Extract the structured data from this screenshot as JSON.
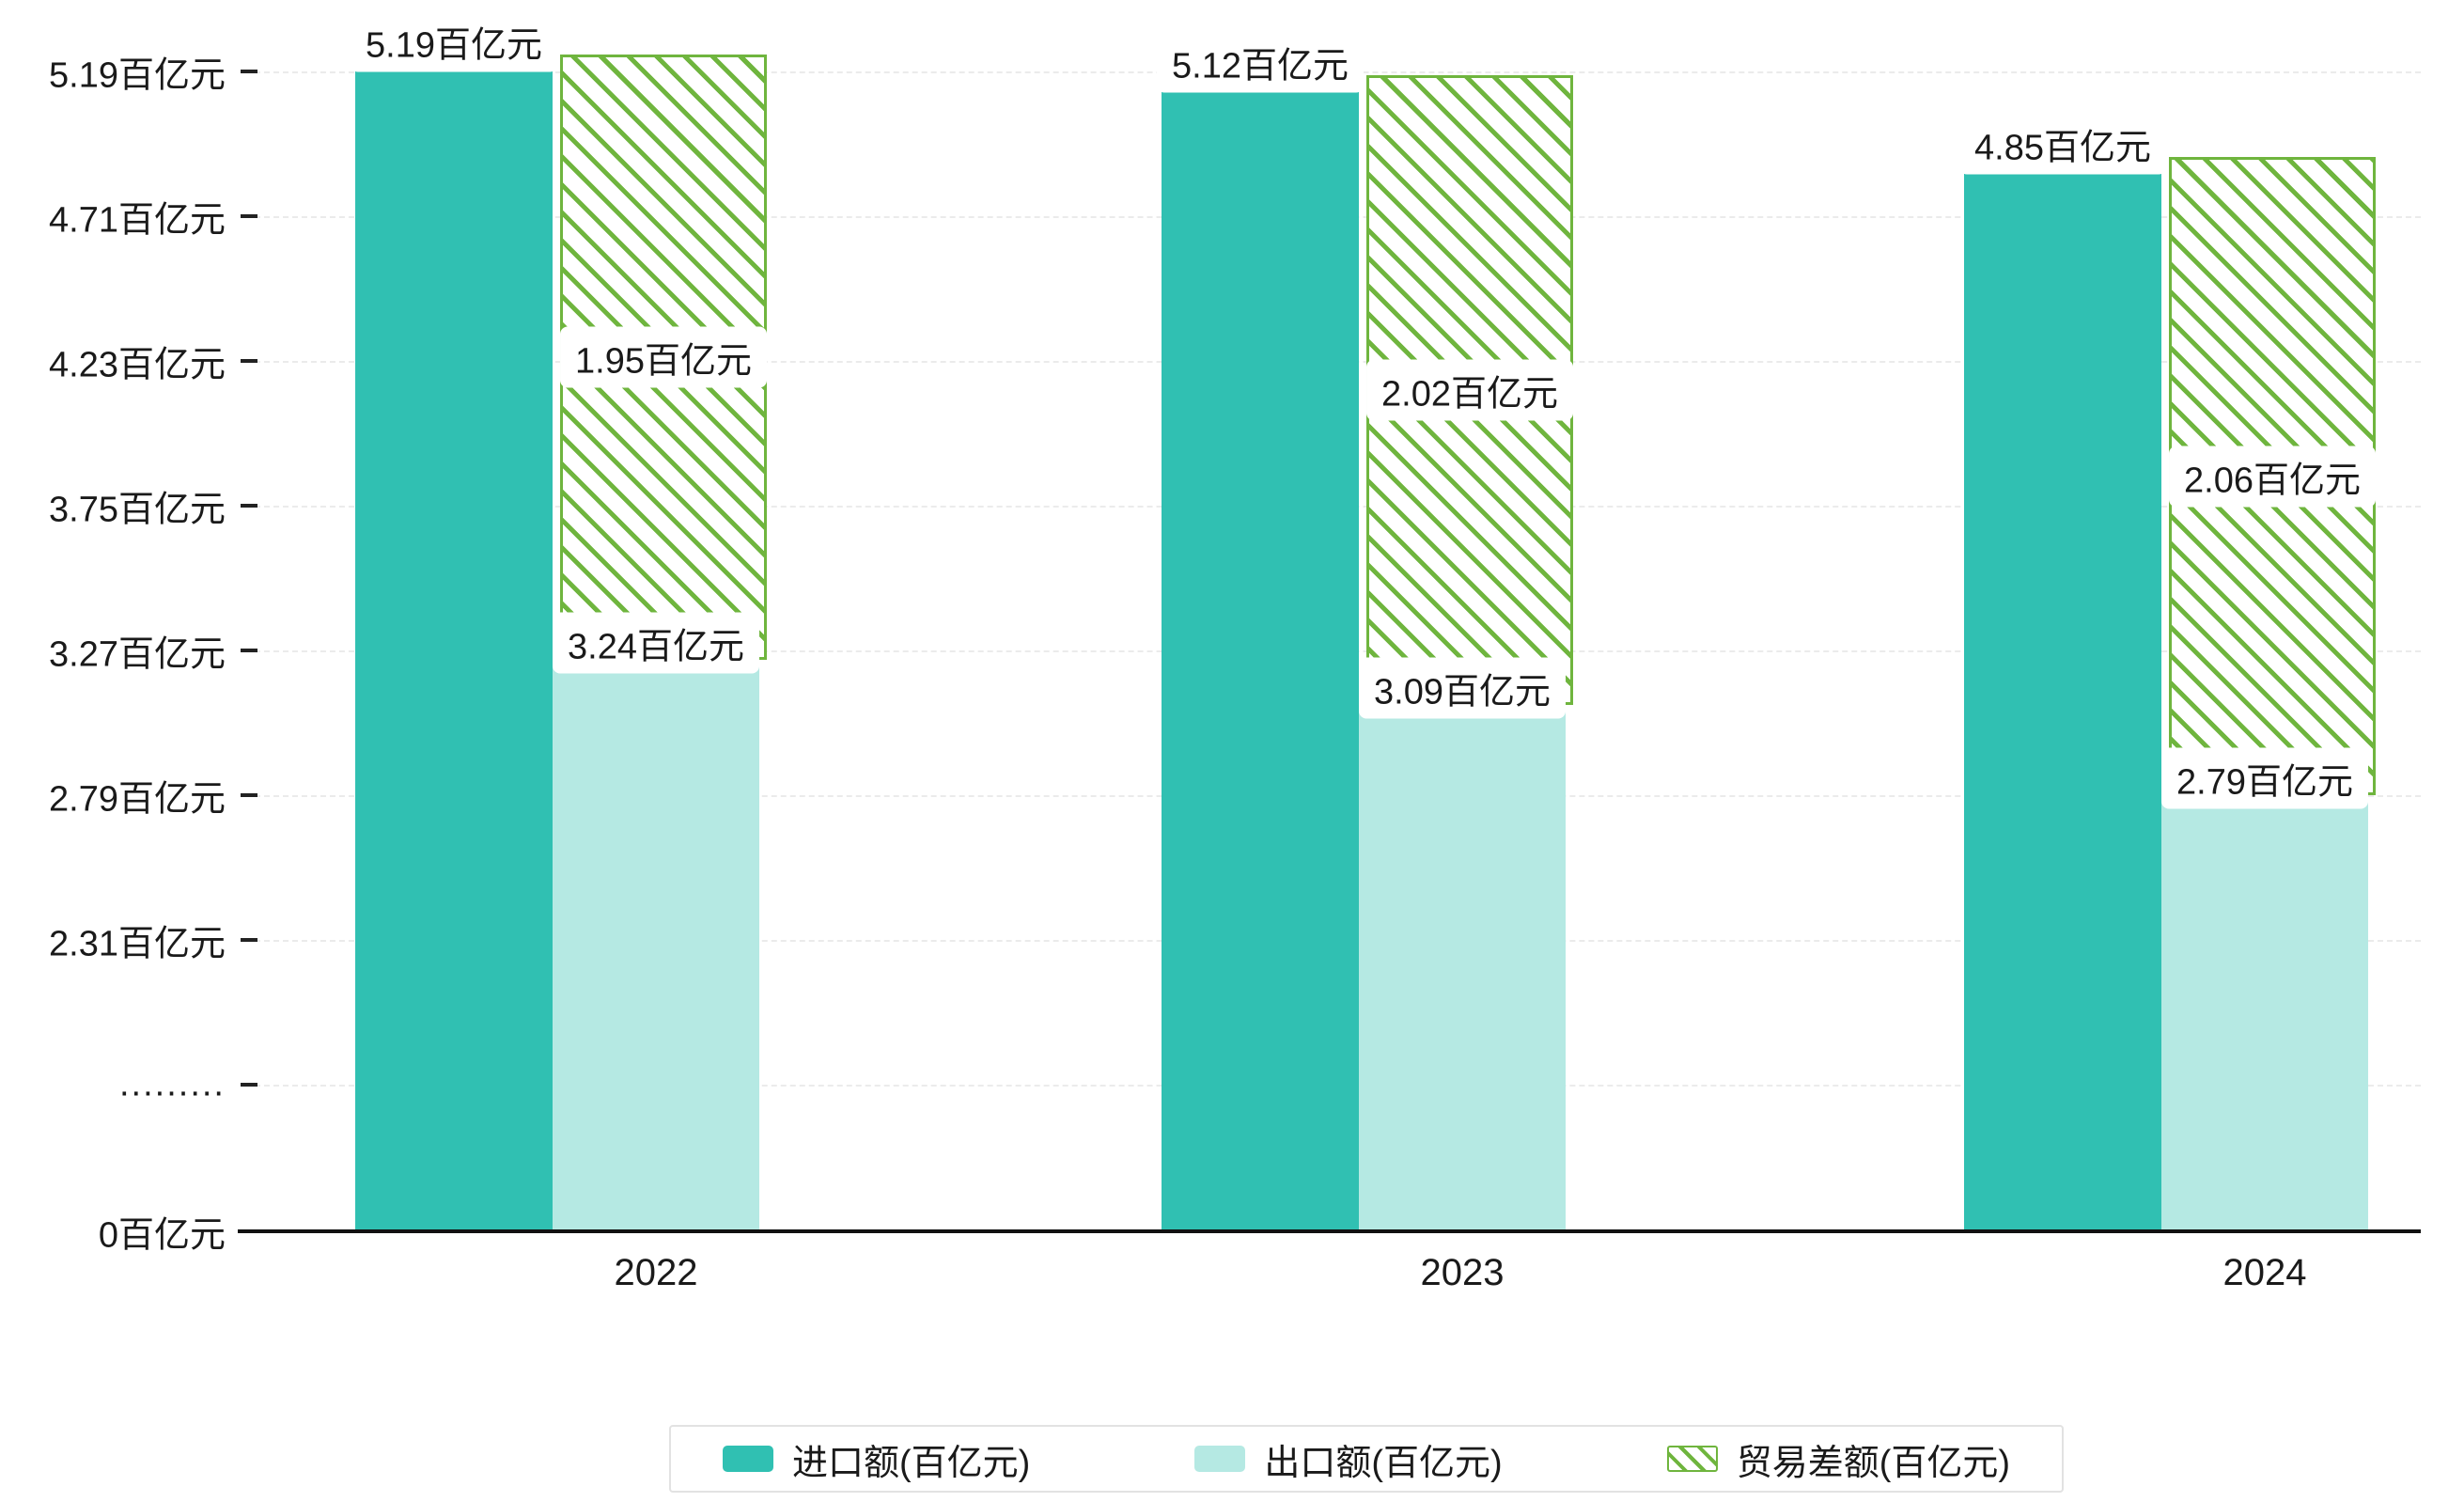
{
  "chart_data": {
    "type": "bar",
    "categories": [
      "2022",
      "2023",
      "2024"
    ],
    "unit": "百亿元",
    "series": [
      {
        "name": "进口额(百亿元)",
        "key": "import",
        "values": [
          5.19,
          5.12,
          4.85
        ],
        "color": "#30c0b2",
        "style": "solid"
      },
      {
        "name": "出口额(百亿元)",
        "key": "export",
        "values": [
          3.24,
          3.09,
          2.79
        ],
        "color": "#b5e9e3",
        "style": "solid"
      },
      {
        "name": "贸易差额(百亿元)",
        "key": "diff",
        "values": [
          1.95,
          2.02,
          2.06
        ],
        "color": "#6fb53e",
        "style": "diagonal-hatch"
      }
    ],
    "data_labels": {
      "import": [
        "5.19百亿元",
        "5.12百亿元",
        "4.85百亿元"
      ],
      "export": [
        "3.24百亿元",
        "3.09百亿元",
        "2.79百亿元"
      ],
      "diff": [
        "1.95百亿元",
        "2.02百亿元",
        "2.06百亿元"
      ]
    },
    "y_axis": {
      "ticks": [
        "5.19百亿元",
        "4.71百亿元",
        "4.23百亿元",
        "3.75百亿元",
        "3.27百亿元",
        "2.79百亿元",
        "2.31百亿元"
      ],
      "break_label": ".........",
      "zero_label": "0百亿元",
      "axis_break": true
    },
    "ylim": [
      0,
      5.19
    ],
    "grid": true,
    "legend_position": "bottom"
  },
  "legend": {
    "items": [
      "进口额(百亿元)",
      "出口额(百亿元)",
      "贸易差额(百亿元)"
    ]
  },
  "colors": {
    "import": "#30c0b2",
    "export": "#b5e9e3",
    "diff_green": "#6fb53e",
    "grid": "#ebebeb",
    "axis": "#111111",
    "label_bg": "#ffffff"
  }
}
